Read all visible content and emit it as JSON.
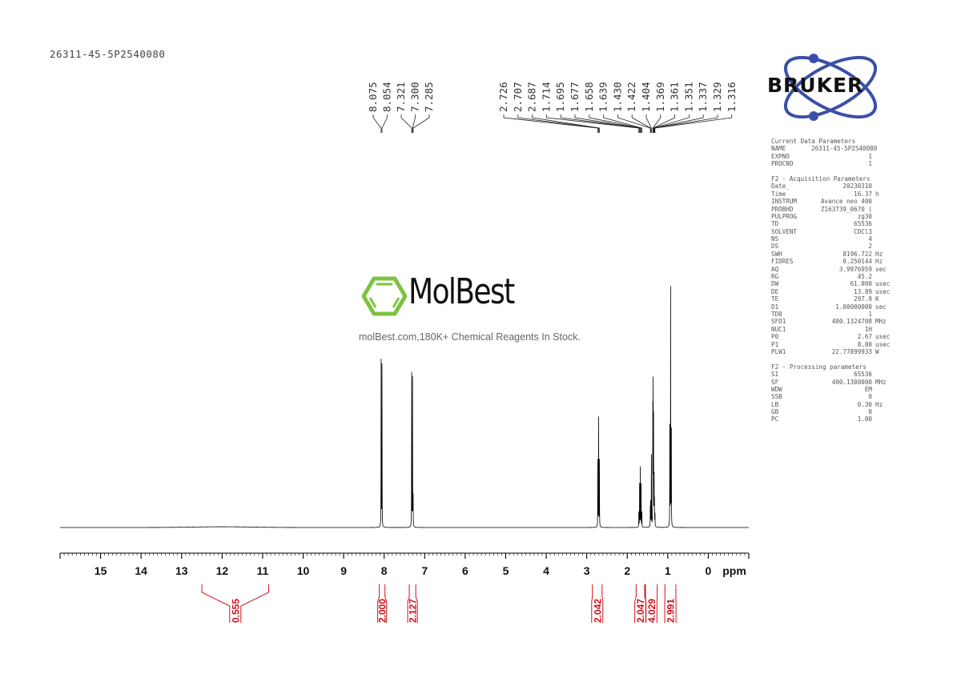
{
  "sample_id": "26311-45-5P2540080",
  "logos": {
    "bruker": "BRUKER",
    "molbest_name": "MolBest",
    "molbest_tagline": "molBest.com,180K+ Chemical Reagents In Stock."
  },
  "parameters": {
    "sections": [
      {
        "title": "Current Data Parameters",
        "rows": [
          {
            "key": "NAME",
            "value": "26311-45-5P2540080",
            "unit": ""
          },
          {
            "key": "EXPNO",
            "value": "1",
            "unit": ""
          },
          {
            "key": "PROCNO",
            "value": "1",
            "unit": ""
          }
        ]
      },
      {
        "title": "F2 - Acquisition Parameters",
        "rows": [
          {
            "key": "Date_",
            "value": "20230310",
            "unit": ""
          },
          {
            "key": "Time",
            "value": "16.37",
            "unit": "h"
          },
          {
            "key": "INSTRUM",
            "value": "Avance neo 400",
            "unit": ""
          },
          {
            "key": "PROBHD",
            "value": "Z163739_0670 (",
            "unit": ""
          },
          {
            "key": "PULPROG",
            "value": "zg30",
            "unit": ""
          },
          {
            "key": "TD",
            "value": "65536",
            "unit": ""
          },
          {
            "key": "SOLVENT",
            "value": "CDCl3",
            "unit": ""
          },
          {
            "key": "NS",
            "value": "4",
            "unit": ""
          },
          {
            "key": "DS",
            "value": "2",
            "unit": ""
          },
          {
            "key": "SWH",
            "value": "8196.722",
            "unit": "Hz"
          },
          {
            "key": "FIDRES",
            "value": "0.250144",
            "unit": "Hz"
          },
          {
            "key": "AQ",
            "value": "3.9976959",
            "unit": "sec"
          },
          {
            "key": "RG",
            "value": "45.2",
            "unit": ""
          },
          {
            "key": "DW",
            "value": "61.000",
            "unit": "usec"
          },
          {
            "key": "DE",
            "value": "13.89",
            "unit": "usec"
          },
          {
            "key": "TE",
            "value": "297.9",
            "unit": "K"
          },
          {
            "key": "D1",
            "value": "1.00000000",
            "unit": "sec"
          },
          {
            "key": "TD0",
            "value": "1",
            "unit": ""
          },
          {
            "key": "SFO1",
            "value": "400.1324708",
            "unit": "MHz"
          },
          {
            "key": "NUC1",
            "value": "1H",
            "unit": ""
          },
          {
            "key": "P0",
            "value": "2.67",
            "unit": "usec"
          },
          {
            "key": "P1",
            "value": "8.00",
            "unit": "usec"
          },
          {
            "key": "PLW1",
            "value": "22.77899933",
            "unit": "W"
          }
        ]
      },
      {
        "title": "F2 - Processing parameters",
        "rows": [
          {
            "key": "SI",
            "value": "65536",
            "unit": ""
          },
          {
            "key": "SF",
            "value": "400.1300000",
            "unit": "MHz"
          },
          {
            "key": "WDW",
            "value": "EM",
            "unit": ""
          },
          {
            "key": "SSB",
            "value": "0",
            "unit": ""
          },
          {
            "key": "LB",
            "value": "0.30",
            "unit": "Hz"
          },
          {
            "key": "GB",
            "value": "0",
            "unit": ""
          },
          {
            "key": "PC",
            "value": "1.00",
            "unit": ""
          }
        ]
      }
    ]
  },
  "chart_data": {
    "type": "line",
    "xlabel": "ppm",
    "xlim": [
      16.0,
      -1.0
    ],
    "x_reversed": true,
    "x_ticks": [
      "15",
      "14",
      "13",
      "12",
      "11",
      "10",
      "9",
      "8",
      "7",
      "6",
      "5",
      "4",
      "3",
      "2",
      "1",
      "0"
    ],
    "grid": false,
    "line_color": "#000000",
    "integral_color": "#d0101a",
    "peaks": [
      {
        "ppm": 8.075,
        "intensity": 0.7
      },
      {
        "ppm": 8.054,
        "intensity": 0.68
      },
      {
        "ppm": 7.321,
        "intensity": 0.62
      },
      {
        "ppm": 7.3,
        "intensity": 0.6
      },
      {
        "ppm": 7.285,
        "intensity": 0.12
      },
      {
        "ppm": 2.726,
        "intensity": 0.28
      },
      {
        "ppm": 2.707,
        "intensity": 0.44
      },
      {
        "ppm": 2.687,
        "intensity": 0.28
      },
      {
        "ppm": 1.714,
        "intensity": 0.06
      },
      {
        "ppm": 1.695,
        "intensity": 0.18
      },
      {
        "ppm": 1.677,
        "intensity": 0.25
      },
      {
        "ppm": 1.658,
        "intensity": 0.18
      },
      {
        "ppm": 1.639,
        "intensity": 0.06
      },
      {
        "ppm": 1.43,
        "intensity": 0.08
      },
      {
        "ppm": 1.422,
        "intensity": 0.1
      },
      {
        "ppm": 1.404,
        "intensity": 0.3
      },
      {
        "ppm": 1.369,
        "intensity": 0.45
      },
      {
        "ppm": 1.361,
        "intensity": 0.56
      },
      {
        "ppm": 1.351,
        "intensity": 0.42
      },
      {
        "ppm": 1.337,
        "intensity": 0.2
      },
      {
        "ppm": 1.329,
        "intensity": 0.1
      },
      {
        "ppm": 1.316,
        "intensity": 0.05
      },
      {
        "ppm": 0.949,
        "intensity": 0.4
      },
      {
        "ppm": 0.93,
        "intensity": 1.0
      },
      {
        "ppm": 0.912,
        "intensity": 0.4
      }
    ],
    "peak_labels": [
      {
        "group": [
          "8.075",
          "8.054"
        ]
      },
      {
        "group": [
          "7.321",
          "7.300",
          "7.285"
        ]
      },
      {
        "group": [
          "2.726",
          "2.707",
          "2.687",
          "1.714",
          "1.695",
          "1.677",
          "1.658",
          "1.639",
          "1.430",
          "1.422",
          "1.404",
          "1.369",
          "1.361",
          "1.351",
          "1.337",
          "1.329",
          "1.316"
        ]
      }
    ],
    "integrals": [
      {
        "from": 12.5,
        "to": 10.85,
        "value": "0.555"
      },
      {
        "from": 8.12,
        "to": 7.98,
        "value": "2.000"
      },
      {
        "from": 7.38,
        "to": 7.22,
        "value": "2.127"
      },
      {
        "from": 2.86,
        "to": 2.62,
        "value": "2.042"
      },
      {
        "from": 1.78,
        "to": 1.57,
        "value": "2.047"
      },
      {
        "from": 1.55,
        "to": 1.26,
        "value": "4.029"
      },
      {
        "from": 1.07,
        "to": 0.8,
        "value": "2.991"
      }
    ]
  }
}
